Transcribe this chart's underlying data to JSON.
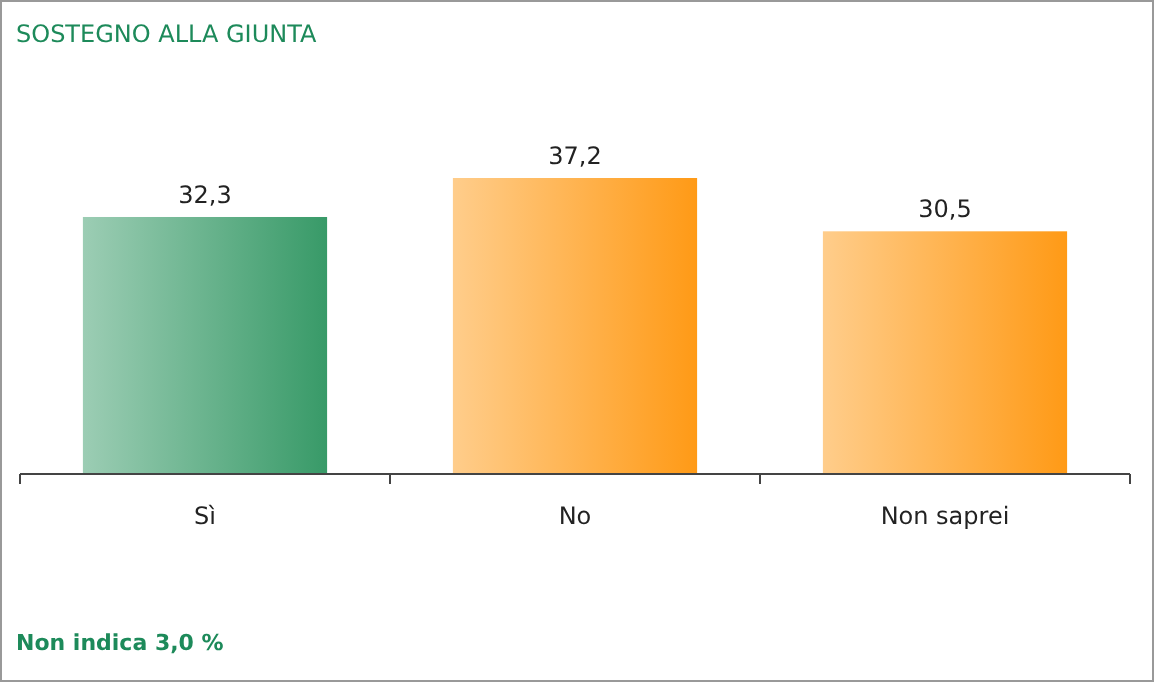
{
  "chart_data": {
    "type": "bar",
    "title": "SOSTEGNO ALLA GIUNTA",
    "categories": [
      "Sì",
      "No",
      "Non saprei"
    ],
    "values": [
      32.3,
      37.2,
      30.5
    ],
    "value_labels": [
      "32,3",
      "37,2",
      "30,5"
    ],
    "colors": [
      "#389a68",
      "#ff9a16",
      "#ff9a16"
    ],
    "annotations": [
      "Non indica 3,0 %"
    ]
  }
}
